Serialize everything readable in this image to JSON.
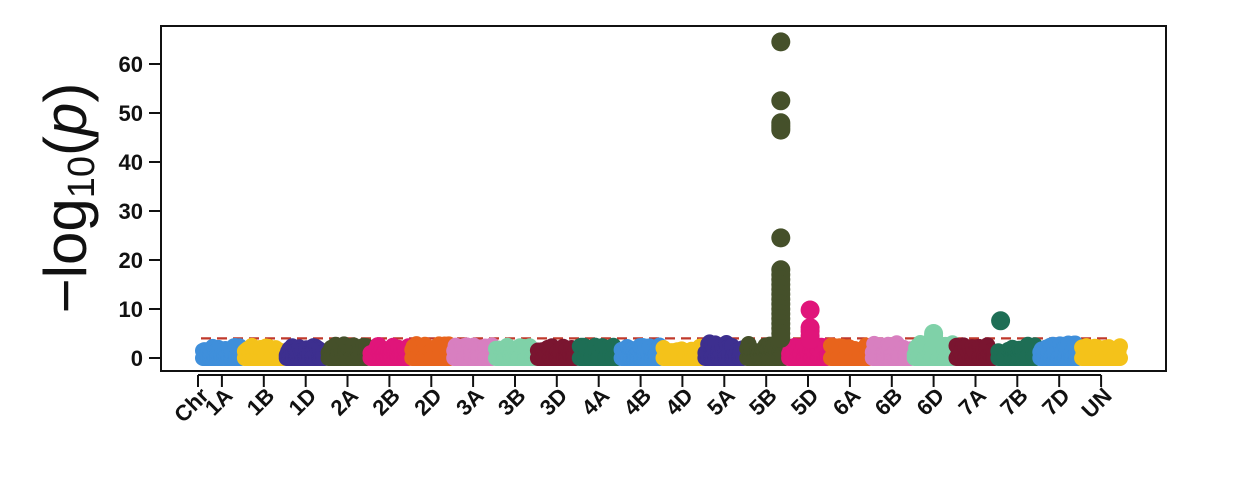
{
  "chart_data": {
    "type": "scatter",
    "title": "",
    "xlabel": "Chr",
    "ylabel": {
      "prefix": "−log",
      "subscript": "10",
      "open": "(",
      "variable": "p",
      "close": ")"
    },
    "ylim": [
      -2,
      68
    ],
    "yticks": [
      0,
      10,
      20,
      30,
      40,
      50,
      60
    ],
    "threshold": {
      "value": 4,
      "color": "#c0392b",
      "style": "dashed"
    },
    "grid": false,
    "legend": "none",
    "chromosomes": [
      {
        "name": "1A",
        "color": "#3f8fdb",
        "base_max": 2.5
      },
      {
        "name": "1B",
        "color": "#f4c21a",
        "base_max": 2.5
      },
      {
        "name": "1D",
        "color": "#3d2f8f",
        "base_max": 2.5
      },
      {
        "name": "2A",
        "color": "#45502a",
        "base_max": 2.8
      },
      {
        "name": "2B",
        "color": "#e0157a",
        "base_max": 3.0
      },
      {
        "name": "2D",
        "color": "#e8641c",
        "base_max": 3.0
      },
      {
        "name": "3A",
        "color": "#d87fc0",
        "base_max": 2.6
      },
      {
        "name": "3B",
        "color": "#7fd1a8",
        "base_max": 2.6
      },
      {
        "name": "3D",
        "color": "#7a1530",
        "base_max": 2.6
      },
      {
        "name": "4A",
        "color": "#1e6e55",
        "base_max": 2.6
      },
      {
        "name": "4B",
        "color": "#3f8fdb",
        "base_max": 2.6
      },
      {
        "name": "4D",
        "color": "#f4c21a",
        "base_max": 2.4
      },
      {
        "name": "5A",
        "color": "#3d2f8f",
        "base_max": 3.2
      },
      {
        "name": "5B",
        "color": "#45502a",
        "base_max": 3.0
      },
      {
        "name": "5D",
        "color": "#e0157a",
        "base_max": 3.0
      },
      {
        "name": "6A",
        "color": "#e8641c",
        "base_max": 2.6
      },
      {
        "name": "6B",
        "color": "#d87fc0",
        "base_max": 3.0
      },
      {
        "name": "6D",
        "color": "#7fd1a8",
        "base_max": 3.2
      },
      {
        "name": "7A",
        "color": "#7a1530",
        "base_max": 2.6
      },
      {
        "name": "7B",
        "color": "#1e6e55",
        "base_max": 2.8
      },
      {
        "name": "7D",
        "color": "#3f8fdb",
        "base_max": 3.0
      },
      {
        "name": "UN",
        "color": "#f4c21a",
        "base_max": 2.6
      }
    ],
    "peaks": [
      {
        "chromosome": "5B",
        "values": [
          64.5,
          52.5,
          48,
          47.5,
          47,
          46.5,
          24.5,
          18,
          17,
          16,
          15,
          14,
          13,
          12,
          11,
          10,
          9,
          8,
          7,
          6,
          5,
          4
        ]
      },
      {
        "chromosome": "5D",
        "values": [
          9.8,
          6.2,
          5.5,
          4.5,
          3.8
        ]
      },
      {
        "chromosome": "6D",
        "values": [
          5.0,
          4.5,
          4.0
        ]
      },
      {
        "chromosome": "7B",
        "values": [
          7.6
        ]
      }
    ]
  }
}
